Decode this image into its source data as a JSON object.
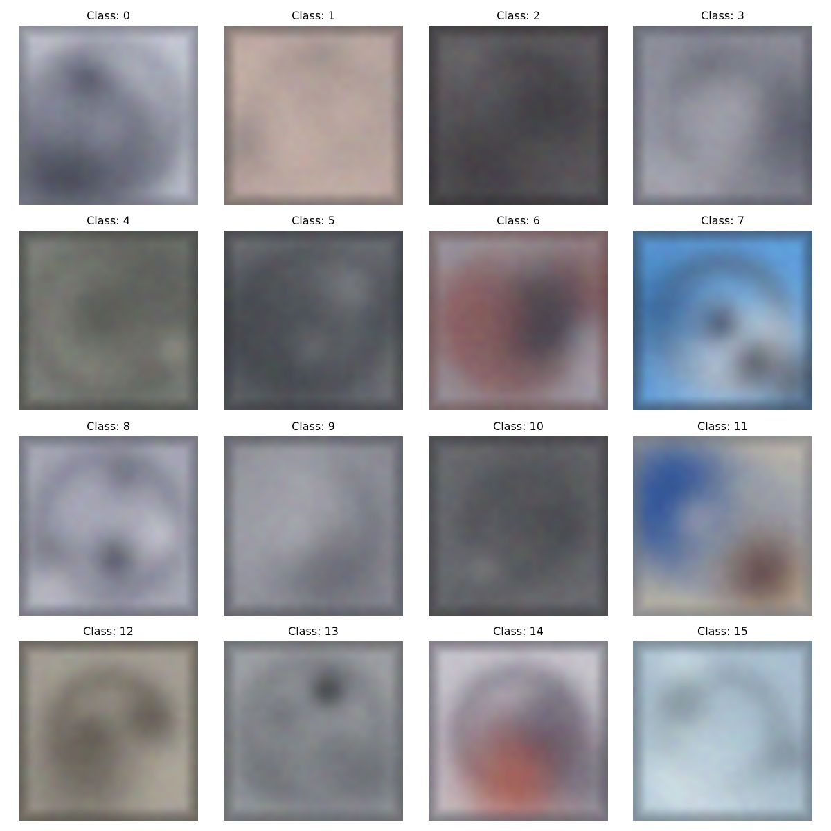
{
  "figure": {
    "panels": [
      {
        "title": "Class: 0",
        "palette": [
          "#c6c8d4",
          "#232633",
          "#3f65a6",
          "#8a8d9c"
        ]
      },
      {
        "title": "Class: 1",
        "palette": [
          "#b7a59f",
          "#8a817e",
          "#c7b1a9",
          "#6e6a6a"
        ]
      },
      {
        "title": "Class: 2",
        "palette": [
          "#5d5b5e",
          "#47454a",
          "#6f6c70",
          "#3a383c"
        ]
      },
      {
        "title": "Class: 3",
        "palette": [
          "#8d8f9c",
          "#4b4d5a",
          "#a9a9b3",
          "#6b6d78"
        ]
      },
      {
        "title": "Class: 4",
        "palette": [
          "#7d7f7b",
          "#5f615d",
          "#9a9a90",
          "#4c4e4a"
        ]
      },
      {
        "title": "Class: 5",
        "palette": [
          "#6e7176",
          "#505358",
          "#85878c",
          "#44474c"
        ]
      },
      {
        "title": "Class: 6",
        "palette": [
          "#9b9ca6",
          "#3a3b47",
          "#b9b7be",
          "#8a5a5a"
        ]
      },
      {
        "title": "Class: 7",
        "palette": [
          "#5e9fdc",
          "#2a5d97",
          "#d7dde3",
          "#4b4d58"
        ]
      },
      {
        "title": "Class: 8",
        "palette": [
          "#a7a8b6",
          "#4b4d5c",
          "#c6c6d0",
          "#6f7181"
        ]
      },
      {
        "title": "Class: 9",
        "palette": [
          "#8a8b94",
          "#3e4049",
          "#a6a7ae",
          "#65666f"
        ]
      },
      {
        "title": "Class: 10",
        "palette": [
          "#6a6b6f",
          "#55565a",
          "#7a7b7f",
          "#4a4b4f"
        ]
      },
      {
        "title": "Class: 11",
        "palette": [
          "#c7bda9",
          "#254c96",
          "#5a3a33",
          "#9aa0ad"
        ]
      },
      {
        "title": "Class: 12",
        "palette": [
          "#a39f94",
          "#6b655d",
          "#c2bcae",
          "#5a544c"
        ]
      },
      {
        "title": "Class: 13",
        "palette": [
          "#9da0a4",
          "#2d3036",
          "#e2e6e4",
          "#6c6f74"
        ]
      },
      {
        "title": "Class: 14",
        "palette": [
          "#c8c5cc",
          "#2f3250",
          "#b85747",
          "#6b6878"
        ]
      },
      {
        "title": "Class: 15",
        "palette": [
          "#a9c0d0",
          "#2b3468",
          "#d0dfe7",
          "#7e8c98"
        ]
      }
    ]
  }
}
